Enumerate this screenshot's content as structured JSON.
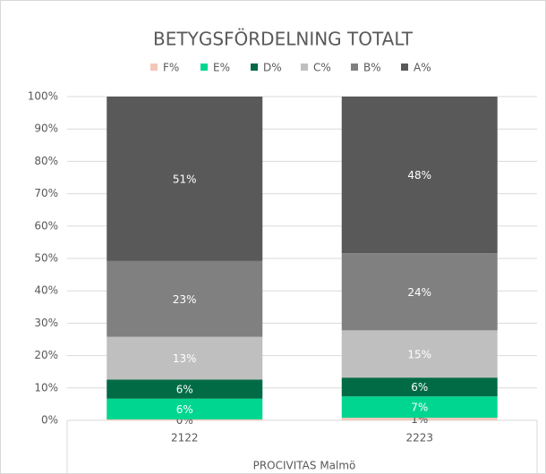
{
  "chart_data": {
    "type": "bar",
    "stacked": true,
    "title": "BETYGSFÖRDELNING TOTALT",
    "xlabel": "PROCIVITAS Malmö",
    "categories": [
      "2122",
      "2223"
    ],
    "series": [
      {
        "name": "F%",
        "color": "#f4c7b8",
        "values": [
          0.3,
          0.8
        ],
        "value_labels": [
          "0%",
          "1%"
        ]
      },
      {
        "name": "E%",
        "color": "#00d68f",
        "values": [
          6.4,
          6.6
        ],
        "value_labels": [
          "6%",
          "7%"
        ]
      },
      {
        "name": "D%",
        "color": "#006b45",
        "values": [
          5.9,
          5.8
        ],
        "value_labels": [
          "6%",
          "6%"
        ]
      },
      {
        "name": "C%",
        "color": "#bfbfbf",
        "values": [
          13.2,
          14.6
        ],
        "value_labels": [
          "13%",
          "15%"
        ]
      },
      {
        "name": "B%",
        "color": "#808080",
        "values": [
          23.4,
          23.8
        ],
        "value_labels": [
          "23%",
          "24%"
        ]
      },
      {
        "name": "A%",
        "color": "#595959",
        "values": [
          50.8,
          48.4
        ],
        "value_labels": [
          "51%",
          "48%"
        ]
      }
    ],
    "ylim": [
      0,
      100
    ],
    "yticks": [
      {
        "value": 0,
        "label": "0%"
      },
      {
        "value": 10,
        "label": "10%"
      },
      {
        "value": 20,
        "label": "20%"
      },
      {
        "value": 30,
        "label": "30%"
      },
      {
        "value": 40,
        "label": "40%"
      },
      {
        "value": 50,
        "label": "50%"
      },
      {
        "value": 60,
        "label": "60%"
      },
      {
        "value": 70,
        "label": "70%"
      },
      {
        "value": 80,
        "label": "80%"
      },
      {
        "value": 90,
        "label": "90%"
      },
      {
        "value": 100,
        "label": "100%"
      }
    ],
    "grid": true,
    "legend": "top"
  }
}
